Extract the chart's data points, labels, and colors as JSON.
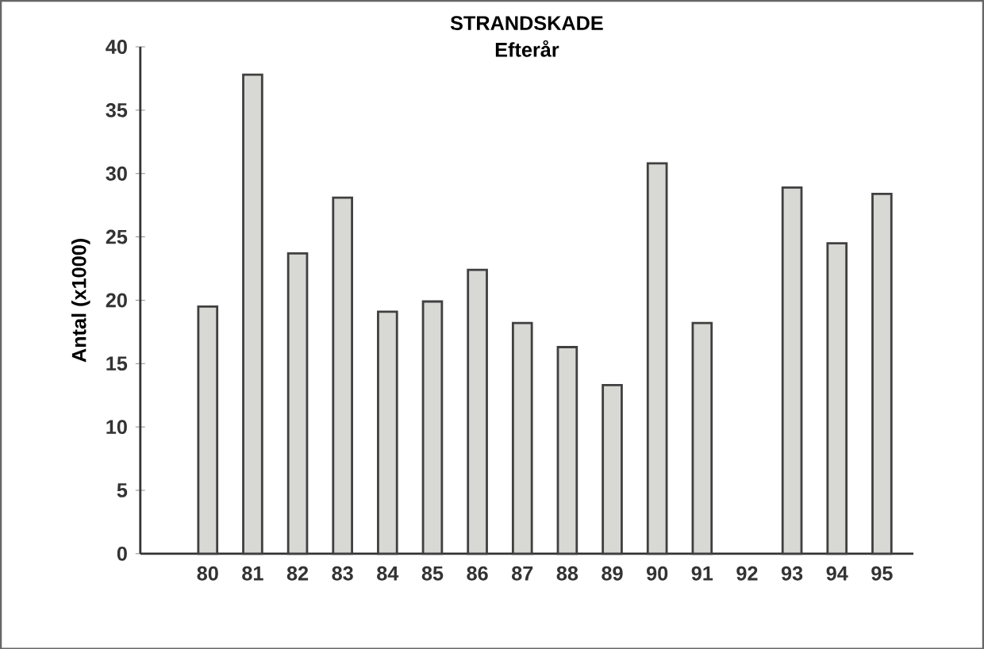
{
  "chart_data": {
    "type": "bar",
    "title": "STRANDSKADE",
    "subtitle": "Efterår",
    "ylabel": "Antal (x1000)",
    "categories": [
      "80",
      "81",
      "82",
      "83",
      "84",
      "85",
      "86",
      "87",
      "88",
      "89",
      "90",
      "91",
      "92",
      "93",
      "94",
      "95"
    ],
    "values": [
      19.5,
      37.8,
      23.7,
      28.1,
      19.1,
      19.9,
      22.4,
      18.2,
      16.3,
      13.3,
      30.8,
      18.2,
      null,
      28.9,
      24.5,
      28.4
    ],
    "color": "#d8d8d4",
    "ylim": [
      0,
      40
    ],
    "yticks": [
      0,
      5,
      10,
      15,
      20,
      25,
      30,
      35,
      40
    ],
    "grid": false
  }
}
